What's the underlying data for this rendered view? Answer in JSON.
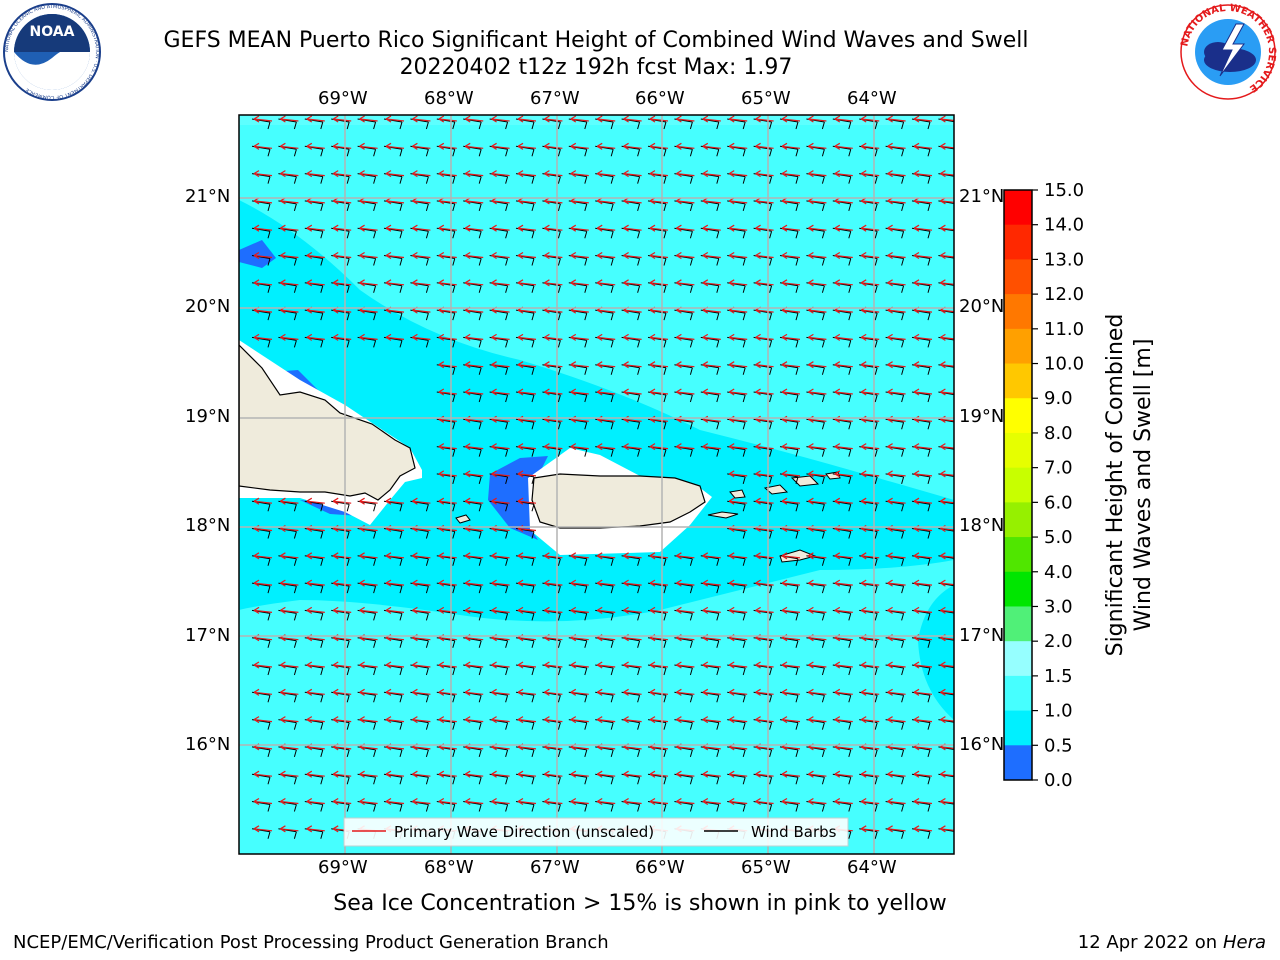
{
  "header": {
    "title_line1": "GEFS MEAN Puerto Rico Significant Height of Combined Wind Waves and Swell",
    "title_line2": "20220402 t12z 192h fcst   Max: 1.97",
    "noaa_logo_text": "NOAA",
    "noaa_logo_ring_text": "NATIONAL OCEANIC AND ATMOSPHERIC ADMINISTRATION · U.S. DEPARTMENT OF COMMERCE",
    "nws_logo_ring_text": "NATIONAL WEATHER SERVICE"
  },
  "map": {
    "lon_labels": [
      "69°W",
      "68°W",
      "67°W",
      "66°W",
      "65°W",
      "64°W"
    ],
    "lat_labels": [
      "21°N",
      "20°N",
      "19°N",
      "18°N",
      "17°N",
      "16°N"
    ],
    "legend": {
      "wave_dir_label": "Primary Wave Direction (unscaled)",
      "wind_barb_label": "Wind Barbs",
      "wave_dir_color": "#e41a1c",
      "wind_barb_color": "#000000"
    },
    "colors": {
      "land": "#efebdc",
      "band_0_5_1_0": "#1e6eff",
      "band_1_0_1_5": "#00f0ff",
      "band_1_5_2_0": "#46ffff",
      "band_2_0_3_0": "#96ffff"
    }
  },
  "colorbar": {
    "label_line1": "Significant Height of Combined",
    "label_line2": "Wind Waves and Swell [m]",
    "ticks": [
      "15.0",
      "14.0",
      "13.0",
      "12.0",
      "11.0",
      "10.0",
      "9.0",
      "8.0",
      "7.0",
      "6.0",
      "5.0",
      "4.0",
      "3.0",
      "2.0",
      "1.5",
      "1.0",
      "0.5",
      "0.0"
    ],
    "band_colors": [
      "#ff0000",
      "#ff2800",
      "#ff5000",
      "#ff7800",
      "#ffa000",
      "#ffc800",
      "#ffff00",
      "#e6ff00",
      "#c8ff00",
      "#96f000",
      "#50e600",
      "#00e600",
      "#50f078",
      "#96ffff",
      "#46ffff",
      "#00f0ff",
      "#1e6eff",
      "#0000ff"
    ]
  },
  "footer": {
    "ice_note": "Sea Ice Concentration > 15% is shown in pink to yellow",
    "branch": "NCEP/EMC/Verification Post Processing Product Generation Branch",
    "date_prefix": "12 Apr 2022 on ",
    "host": "Hera"
  }
}
